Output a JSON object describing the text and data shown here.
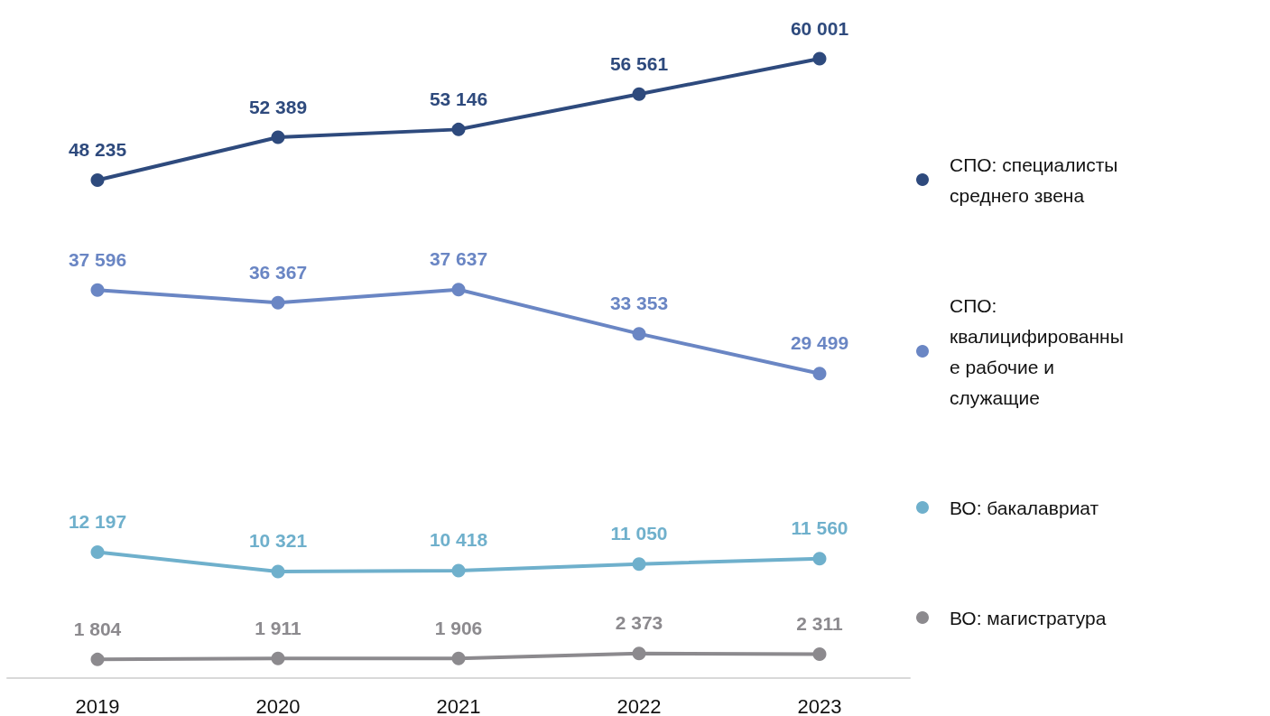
{
  "chart_data": {
    "type": "line",
    "categories": [
      "2019",
      "2020",
      "2021",
      "2022",
      "2023"
    ],
    "series": [
      {
        "name": "СПО: специалисты среднего звена",
        "color": "#2e4a7d",
        "values": [
          48235,
          52389,
          53146,
          56561,
          60001
        ]
      },
      {
        "name": "СПО: квалицифированные рабочие и служащие",
        "color": "#6a86c4",
        "values": [
          37596,
          36367,
          37637,
          33353,
          29499
        ]
      },
      {
        "name": "ВО: бакалавриат",
        "color": "#6fb0cc",
        "values": [
          12197,
          10321,
          10418,
          11050,
          11560
        ]
      },
      {
        "name": "ВО: магистратура",
        "color": "#8c8a8e",
        "values": [
          1804,
          1911,
          1906,
          2373,
          2311
        ]
      }
    ],
    "data_labels": true,
    "grid": false,
    "legend": "right",
    "marker": "circle",
    "line_style": "solid",
    "tick_labels": "x"
  }
}
